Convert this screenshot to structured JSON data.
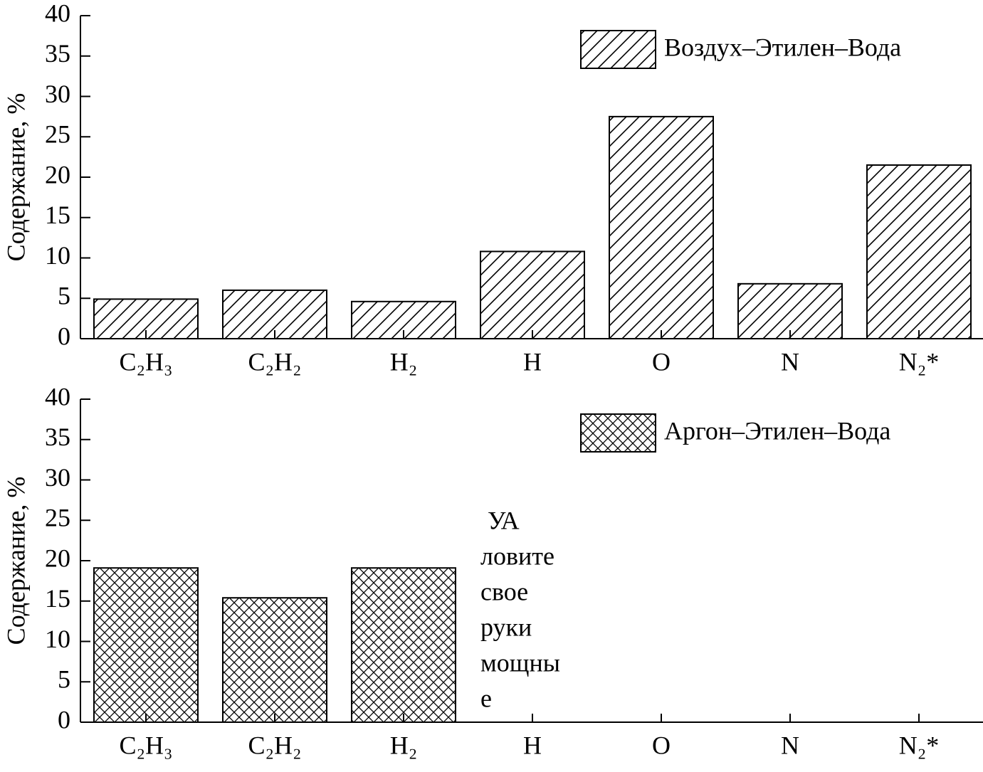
{
  "chart_data": [
    {
      "type": "bar",
      "ylabel": "Содержание, %",
      "categories": [
        "C₂H₃",
        "C₂H₂",
        "H₂",
        "H",
        "O",
        "N",
        "N₂*"
      ],
      "series": [
        {
          "name": "Воздух–Этилен–Вода",
          "color": "#000000",
          "hatch": "diagonal",
          "values": [
            4.9,
            6.0,
            4.6,
            10.8,
            27.5,
            6.8,
            21.5
          ]
        }
      ],
      "ylim": [
        0,
        40
      ],
      "yticks": [
        0,
        5,
        10,
        15,
        20,
        25,
        30,
        35,
        40
      ]
    },
    {
      "type": "bar",
      "ylabel": "Содержание, %",
      "categories": [
        "C₂H₃",
        "C₂H₂",
        "H₂",
        "H",
        "O",
        "N",
        "N₂*"
      ],
      "series": [
        {
          "name": "Аргон–Этилен–Вода",
          "color": "#000000",
          "hatch": "cross",
          "values": [
            19.1,
            15.4,
            19.1,
            null,
            null,
            null,
            null
          ]
        }
      ],
      "ylim": [
        0,
        40
      ],
      "yticks": [
        0,
        5,
        10,
        15,
        20,
        25,
        30,
        35,
        40
      ],
      "annotation": [
        "УА",
        "ловите",
        "свое",
        "руки",
        "мощны",
        "е"
      ]
    }
  ]
}
